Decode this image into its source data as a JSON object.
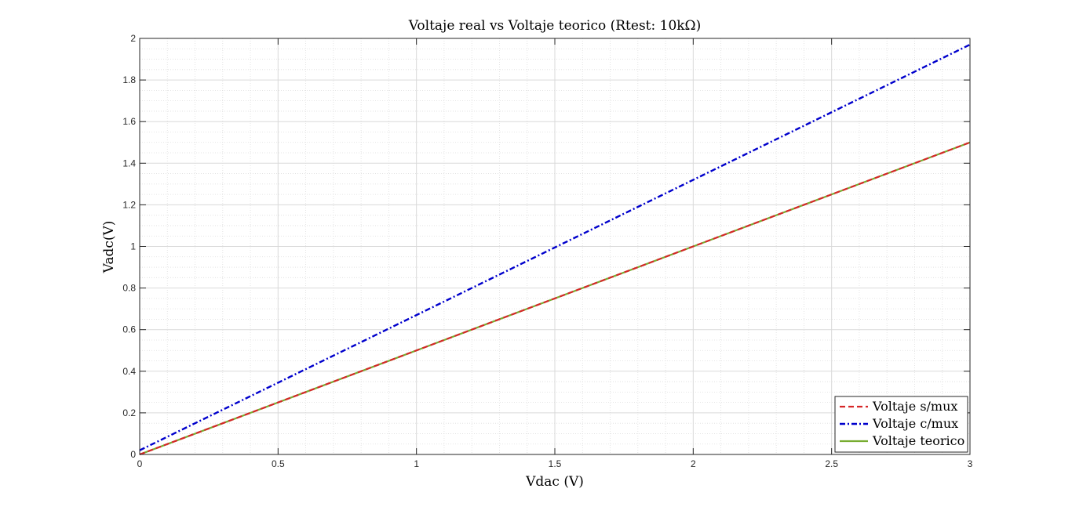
{
  "chart_data": {
    "type": "line",
    "title": "Voltaje real vs Voltaje teorico (Rtest: 10kΩ)",
    "xlabel": "Vdac (V)",
    "ylabel": "Vadc(V)",
    "xlim": [
      0,
      3
    ],
    "ylim": [
      0,
      2
    ],
    "x_ticks": [
      0,
      0.5,
      1,
      1.5,
      2,
      2.5,
      3
    ],
    "x_tick_labels": [
      "0",
      "0.5",
      "1",
      "1.5",
      "2",
      "2.5",
      "3"
    ],
    "y_ticks": [
      0,
      0.2,
      0.4,
      0.6,
      0.8,
      1,
      1.2,
      1.4,
      1.6,
      1.8,
      2
    ],
    "y_tick_labels": [
      "0",
      "0.2",
      "0.4",
      "0.6",
      "0.8",
      "1",
      "1.2",
      "1.4",
      "1.6",
      "1.8",
      "2"
    ],
    "grid": true,
    "minor_grid": true,
    "legend_position": "bottom-right",
    "series": [
      {
        "name": "Voltaje s/mux",
        "color": "#d62728",
        "style": "dashed",
        "x": [
          0,
          0.5,
          1,
          1.5,
          2,
          2.5,
          3
        ],
        "y": [
          0,
          0.25,
          0.5,
          0.75,
          1.0,
          1.25,
          1.5
        ]
      },
      {
        "name": "Voltaje c/mux",
        "color": "#0000cc",
        "style": "dashdot",
        "x": [
          0,
          0.5,
          1,
          1.5,
          2,
          2.5,
          3
        ],
        "y": [
          0.02,
          0.345,
          0.67,
          0.995,
          1.32,
          1.645,
          1.97
        ]
      },
      {
        "name": "Voltaje teorico",
        "color": "#77ac30",
        "style": "solid",
        "x": [
          0,
          0.5,
          1,
          1.5,
          2,
          2.5,
          3
        ],
        "y": [
          0,
          0.25,
          0.5,
          0.75,
          1.0,
          1.25,
          1.5
        ]
      }
    ]
  }
}
